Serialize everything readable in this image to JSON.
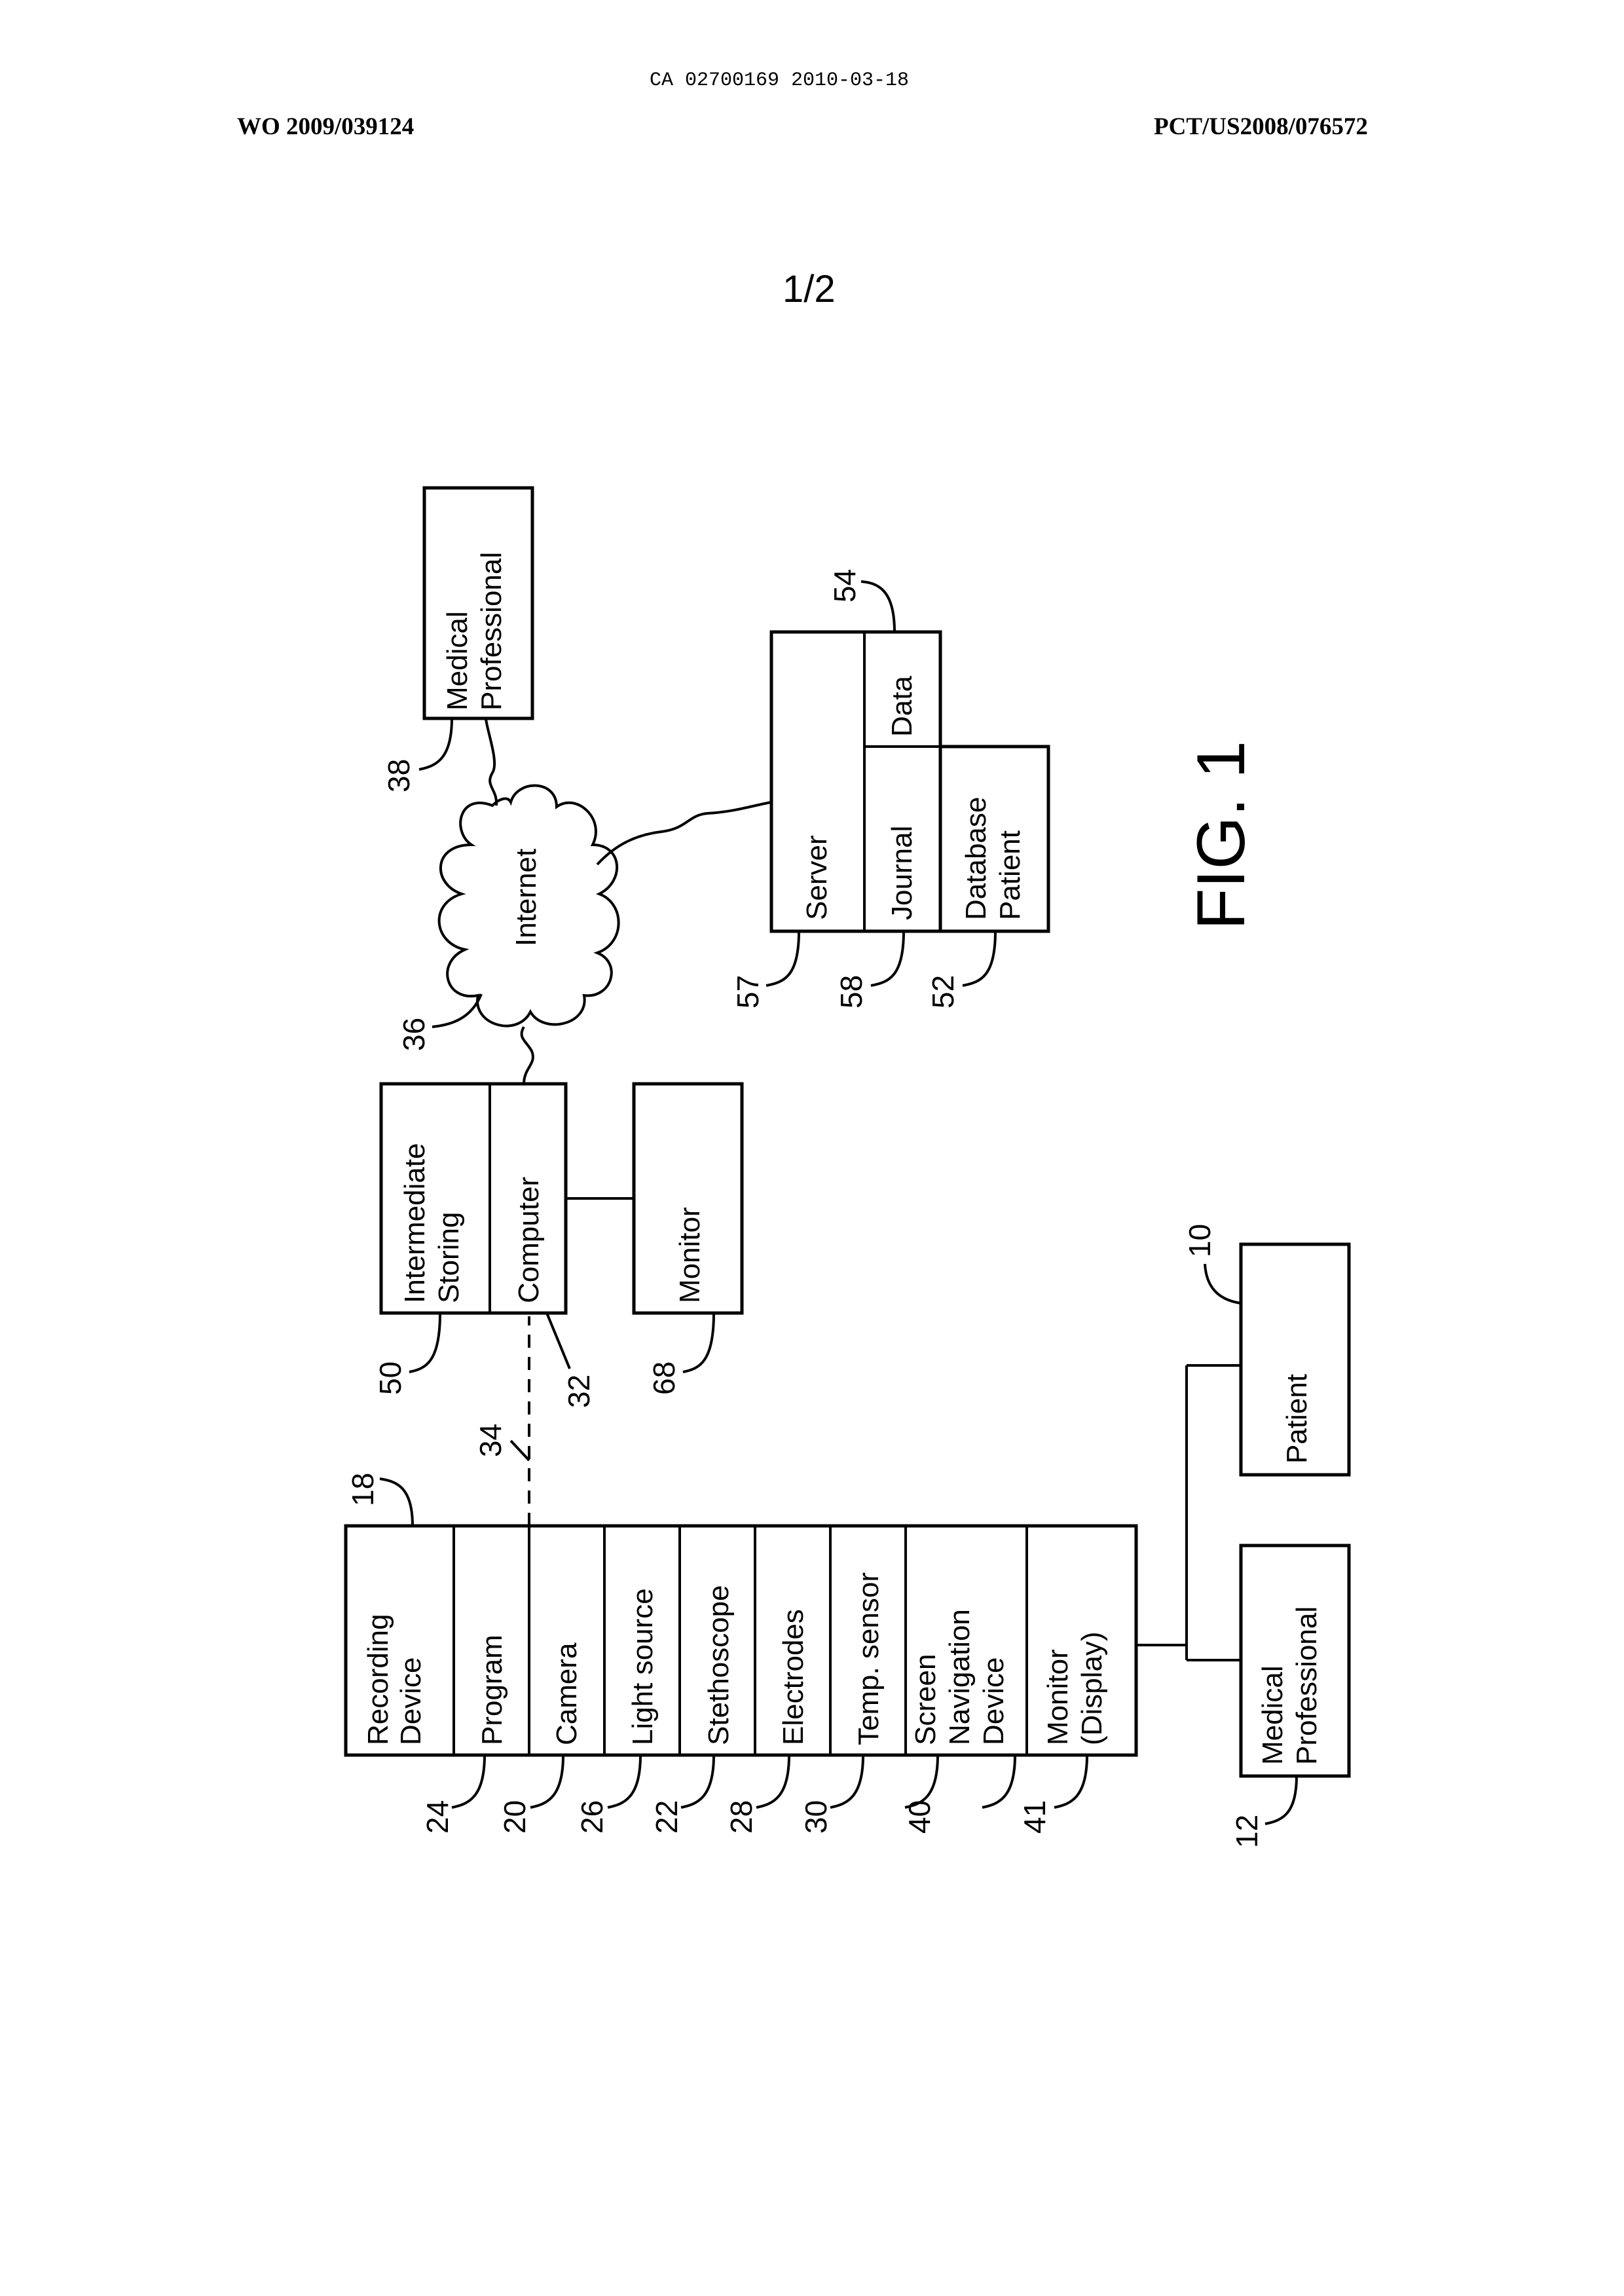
{
  "header": {
    "doc_id": "CA 02700169 2010-03-18",
    "left_pub": "WO 2009/039124",
    "right_pub": "PCT/US2008/076572",
    "page_number": "1/2"
  },
  "figure": {
    "caption": "FIG. 1",
    "recording_device": {
      "sections": [
        {
          "line1": "Recording",
          "line2": "Device",
          "ref": "24"
        },
        {
          "line1": "Program",
          "ref": "20"
        },
        {
          "line1": "Camera",
          "ref": "26"
        },
        {
          "line1": "Light source",
          "ref": "22"
        },
        {
          "line1": "Stethoscope",
          "ref": "28"
        },
        {
          "line1": "Electrodes",
          "ref": "30"
        },
        {
          "line1": "Temp. sensor",
          "ref": "40"
        },
        {
          "line1": "Screen",
          "line2": "Navigation",
          "line3": "Device",
          "ref": "41"
        },
        {
          "line1": "Monitor",
          "line2": "(Display)"
        }
      ],
      "top_ref": "18",
      "link_ref": "34"
    },
    "computer_unit": {
      "storage_line1": "Intermediate",
      "storage_line2": "Storing",
      "storage_ref": "50",
      "computer": "Computer",
      "computer_ref": "32"
    },
    "monitor": {
      "label": "Monitor",
      "ref": "68"
    },
    "internet": {
      "label": "Internet",
      "ref": "36"
    },
    "remote_professional": {
      "line1": "Medical",
      "line2": "Professional",
      "ref": "38"
    },
    "server_unit": {
      "server": "Server",
      "server_ref": "57",
      "journal": "Journal",
      "journal_ref": "58",
      "data": "Data",
      "data_ref": "54",
      "db_line1": "Database",
      "db_line2": "Patient",
      "db_ref": "52"
    },
    "patient": {
      "label": "Patient",
      "ref": "10"
    },
    "local_professional": {
      "line1": "Medical",
      "line2": "Professional",
      "ref": "12"
    }
  }
}
